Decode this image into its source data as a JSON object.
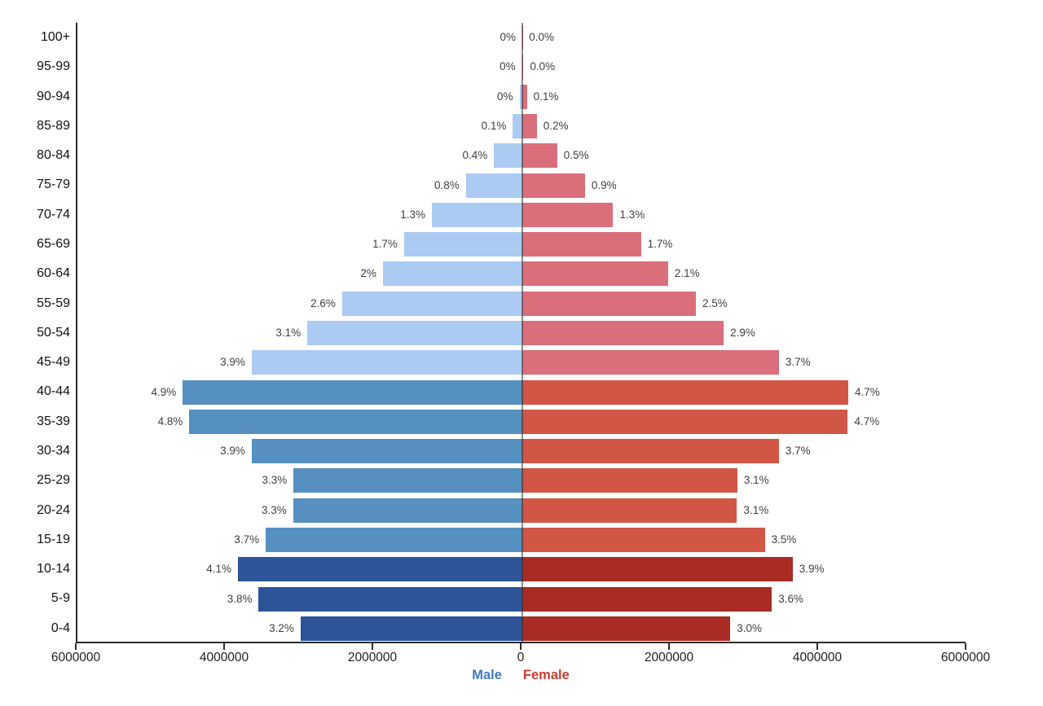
{
  "chart_data": {
    "type": "bar",
    "subtype": "population-pyramid",
    "orientation": "horizontal",
    "grid": false,
    "legend_position": "bottom-center",
    "x_axis": {
      "tick_labels": [
        "6000000",
        "4000000",
        "2000000",
        "0",
        "2000000",
        "4000000",
        "6000000"
      ],
      "tick_values": [
        -6000000,
        -4000000,
        -2000000,
        0,
        2000000,
        4000000,
        6000000
      ],
      "xlim": [
        -6000000,
        6000000
      ]
    },
    "legend": {
      "male": "Male",
      "female": "Female"
    },
    "rows": [
      {
        "age": "100+",
        "shade": "light",
        "male": {
          "label": "0%",
          "value": 0
        },
        "female": {
          "label": "0.0%",
          "value": 3000
        }
      },
      {
        "age": "95-99",
        "shade": "light",
        "male": {
          "label": "0%",
          "value": 4000
        },
        "female": {
          "label": "0.0%",
          "value": 15000
        }
      },
      {
        "age": "90-94",
        "shade": "light",
        "male": {
          "label": "0%",
          "value": 38000
        },
        "female": {
          "label": "0.1%",
          "value": 62000
        }
      },
      {
        "age": "85-89",
        "shade": "light",
        "male": {
          "label": "0.1%",
          "value": 128000
        },
        "female": {
          "label": "0.2%",
          "value": 195000
        }
      },
      {
        "age": "80-84",
        "shade": "light",
        "male": {
          "label": "0.4%",
          "value": 382000
        },
        "female": {
          "label": "0.5%",
          "value": 470000
        }
      },
      {
        "age": "75-79",
        "shade": "light",
        "male": {
          "label": "0.8%",
          "value": 760000
        },
        "female": {
          "label": "0.9%",
          "value": 845000
        }
      },
      {
        "age": "70-74",
        "shade": "light",
        "male": {
          "label": "1.3%",
          "value": 1220000
        },
        "female": {
          "label": "1.3%",
          "value": 1225000
        }
      },
      {
        "age": "65-69",
        "shade": "light",
        "male": {
          "label": "1.7%",
          "value": 1595000
        },
        "female": {
          "label": "1.7%",
          "value": 1600000
        }
      },
      {
        "age": "60-64",
        "shade": "light",
        "male": {
          "label": "2%",
          "value": 1880000
        },
        "female": {
          "label": "2.1%",
          "value": 1965000
        }
      },
      {
        "age": "55-59",
        "shade": "light",
        "male": {
          "label": "2.6%",
          "value": 2430000
        },
        "female": {
          "label": "2.5%",
          "value": 2340000
        }
      },
      {
        "age": "50-54",
        "shade": "light",
        "male": {
          "label": "3.1%",
          "value": 2900000
        },
        "female": {
          "label": "2.9%",
          "value": 2715000
        }
      },
      {
        "age": "45-49",
        "shade": "light",
        "male": {
          "label": "3.9%",
          "value": 3650000
        },
        "female": {
          "label": "3.7%",
          "value": 3460000
        }
      },
      {
        "age": "40-44",
        "shade": "medium",
        "male": {
          "label": "4.9%",
          "value": 4580000
        },
        "female": {
          "label": "4.7%",
          "value": 4395000
        }
      },
      {
        "age": "35-39",
        "shade": "medium",
        "male": {
          "label": "4.8%",
          "value": 4490000
        },
        "female": {
          "label": "4.7%",
          "value": 4390000
        }
      },
      {
        "age": "30-34",
        "shade": "medium",
        "male": {
          "label": "3.9%",
          "value": 3650000
        },
        "female": {
          "label": "3.7%",
          "value": 3460000
        }
      },
      {
        "age": "25-29",
        "shade": "medium",
        "male": {
          "label": "3.3%",
          "value": 3085000
        },
        "female": {
          "label": "3.1%",
          "value": 2900000
        }
      },
      {
        "age": "20-24",
        "shade": "medium",
        "male": {
          "label": "3.3%",
          "value": 3090000
        },
        "female": {
          "label": "3.1%",
          "value": 2895000
        }
      },
      {
        "age": "15-19",
        "shade": "medium",
        "male": {
          "label": "3.7%",
          "value": 3460000
        },
        "female": {
          "label": "3.5%",
          "value": 3270000
        }
      },
      {
        "age": "10-14",
        "shade": "dark",
        "male": {
          "label": "4.1%",
          "value": 3835000
        },
        "female": {
          "label": "3.9%",
          "value": 3645000
        }
      },
      {
        "age": "5-9",
        "shade": "dark",
        "male": {
          "label": "3.8%",
          "value": 3555000
        },
        "female": {
          "label": "3.6%",
          "value": 3365000
        }
      },
      {
        "age": "0-4",
        "shade": "dark",
        "male": {
          "label": "3.2%",
          "value": 2990000
        },
        "female": {
          "label": "3.0%",
          "value": 2805000
        }
      }
    ]
  },
  "colors": {
    "male": {
      "light": "#abcbf3",
      "medium": "#5590c1",
      "dark": "#2d5499"
    },
    "female": {
      "light": "#db6e7b",
      "medium": "#d15645",
      "dark": "#a82c24"
    },
    "male_legend": "#3d7cc0",
    "female_legend": "#cc3a2e",
    "axis": "#2b2b2b",
    "center_line": "#6b6b6b",
    "pct_label": "#3f3f3f"
  }
}
